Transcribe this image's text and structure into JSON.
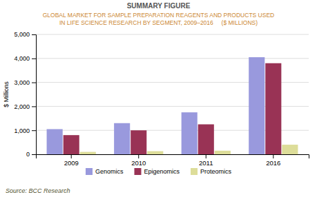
{
  "chart_data": {
    "type": "bar",
    "title": "SUMMARY FIGURE",
    "subtitle": [
      "GLOBAL MARKET FOR SAMPLE PREPARATION REAGENTS AND PRODUCTS USED",
      "IN LIFE SCIENCE RESEARCH BY SEGMENT, 2009–2016     ($ MILLIONS)"
    ],
    "annotations": [
      "Source: BCC Research"
    ],
    "categories": [
      "2009",
      "2010",
      "2011",
      "2016"
    ],
    "series": [
      {
        "name": "Genomics",
        "color": "#9999dd",
        "values": [
          1050,
          1300,
          1750,
          4050
        ]
      },
      {
        "name": "Epigenomics",
        "color": "#993355",
        "values": [
          800,
          1000,
          1250,
          3800
        ]
      },
      {
        "name": "Proteomics",
        "color": "#dddd99",
        "values": [
          100,
          130,
          150,
          400
        ]
      }
    ],
    "y_label": "$ Millions",
    "ylim": [
      0,
      5000
    ],
    "yticks": [
      0,
      {
        "value": 1000,
        "label": "1,000"
      },
      {
        "value": 2000,
        "label": "2,000"
      },
      {
        "value": 3000,
        "label": "3,000"
      },
      {
        "value": 4000,
        "label": "4,000"
      },
      {
        "value": 5000,
        "label": "5,000"
      }
    ],
    "grid": true,
    "legend": "bottom"
  }
}
